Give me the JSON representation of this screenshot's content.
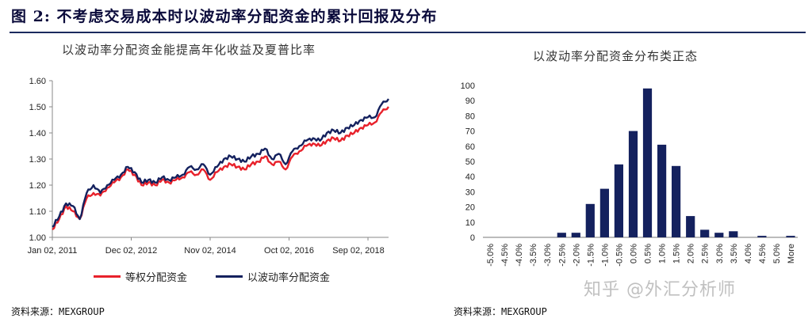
{
  "figure_title": "图 2: 不考虑交易成本时以波动率分配资金的累计回报及分布",
  "left_source": "资料来源：MEXGROUP",
  "right_source": "资料来源：MEXGROUP",
  "watermark": "知乎 @外汇分析师",
  "colors": {
    "equal": "#e8212b",
    "vol": "#14215e",
    "bar": "#14215e"
  },
  "chart_data": [
    {
      "type": "line",
      "title": "以波动率分配资金能提高年化收益及夏普比率",
      "xlabel": "",
      "ylabel": "",
      "ylim": [
        1.0,
        1.6
      ],
      "yticks": [
        "1.00",
        "1.10",
        "1.20",
        "1.30",
        "1.40",
        "1.50",
        "1.60"
      ],
      "xticks": [
        "Jan 02, 2011",
        "Dec 02, 2012",
        "Nov 02, 2014",
        "Oct 02, 2016",
        "Sep 02, 2018"
      ],
      "xrange": [
        "2011-01",
        "2019-03"
      ],
      "legend": "bottom",
      "series": [
        {
          "name": "等权分配资金",
          "color": "#e8212b",
          "points": [
            [
              "2011-01",
              1.03
            ],
            [
              "2011-03",
              1.07
            ],
            [
              "2011-05",
              1.12
            ],
            [
              "2011-07",
              1.1
            ],
            [
              "2011-09",
              1.07
            ],
            [
              "2011-11",
              1.15
            ],
            [
              "2012-01",
              1.17
            ],
            [
              "2012-03",
              1.16
            ],
            [
              "2012-05",
              1.19
            ],
            [
              "2012-07",
              1.21
            ],
            [
              "2012-09",
              1.23
            ],
            [
              "2012-11",
              1.26
            ],
            [
              "2013-01",
              1.24
            ],
            [
              "2013-03",
              1.2
            ],
            [
              "2013-05",
              1.21
            ],
            [
              "2013-07",
              1.2
            ],
            [
              "2013-09",
              1.22
            ],
            [
              "2013-11",
              1.21
            ],
            [
              "2014-01",
              1.22
            ],
            [
              "2014-03",
              1.23
            ],
            [
              "2014-05",
              1.25
            ],
            [
              "2014-07",
              1.24
            ],
            [
              "2014-09",
              1.26
            ],
            [
              "2014-11",
              1.22
            ],
            [
              "2015-01",
              1.25
            ],
            [
              "2015-03",
              1.27
            ],
            [
              "2015-05",
              1.28
            ],
            [
              "2015-07",
              1.27
            ],
            [
              "2015-09",
              1.26
            ],
            [
              "2015-11",
              1.28
            ],
            [
              "2016-01",
              1.29
            ],
            [
              "2016-03",
              1.31
            ],
            [
              "2016-05",
              1.28
            ],
            [
              "2016-07",
              1.29
            ],
            [
              "2016-09",
              1.26
            ],
            [
              "2016-11",
              1.31
            ],
            [
              "2017-01",
              1.33
            ],
            [
              "2017-03",
              1.35
            ],
            [
              "2017-05",
              1.36
            ],
            [
              "2017-07",
              1.35
            ],
            [
              "2017-09",
              1.37
            ],
            [
              "2017-11",
              1.38
            ],
            [
              "2018-01",
              1.37
            ],
            [
              "2018-03",
              1.39
            ],
            [
              "2018-05",
              1.4
            ],
            [
              "2018-07",
              1.42
            ],
            [
              "2018-09",
              1.43
            ],
            [
              "2018-11",
              1.44
            ],
            [
              "2019-01",
              1.48
            ],
            [
              "2019-03",
              1.5
            ]
          ]
        },
        {
          "name": "以波动率分配资金",
          "color": "#14215e",
          "points": [
            [
              "2011-01",
              1.04
            ],
            [
              "2011-03",
              1.08
            ],
            [
              "2011-05",
              1.13
            ],
            [
              "2011-07",
              1.12
            ],
            [
              "2011-09",
              1.07
            ],
            [
              "2011-11",
              1.17
            ],
            [
              "2012-01",
              1.2
            ],
            [
              "2012-03",
              1.17
            ],
            [
              "2012-05",
              1.2
            ],
            [
              "2012-07",
              1.22
            ],
            [
              "2012-09",
              1.24
            ],
            [
              "2012-11",
              1.27
            ],
            [
              "2013-01",
              1.25
            ],
            [
              "2013-03",
              1.21
            ],
            [
              "2013-05",
              1.22
            ],
            [
              "2013-07",
              1.21
            ],
            [
              "2013-09",
              1.23
            ],
            [
              "2013-11",
              1.22
            ],
            [
              "2014-01",
              1.23
            ],
            [
              "2014-03",
              1.24
            ],
            [
              "2014-05",
              1.27
            ],
            [
              "2014-07",
              1.26
            ],
            [
              "2014-09",
              1.28
            ],
            [
              "2014-11",
              1.24
            ],
            [
              "2015-01",
              1.27
            ],
            [
              "2015-03",
              1.3
            ],
            [
              "2015-05",
              1.31
            ],
            [
              "2015-07",
              1.3
            ],
            [
              "2015-09",
              1.29
            ],
            [
              "2015-11",
              1.31
            ],
            [
              "2016-01",
              1.32
            ],
            [
              "2016-03",
              1.34
            ],
            [
              "2016-05",
              1.3
            ],
            [
              "2016-07",
              1.32
            ],
            [
              "2016-09",
              1.28
            ],
            [
              "2016-11",
              1.33
            ],
            [
              "2017-01",
              1.35
            ],
            [
              "2017-03",
              1.37
            ],
            [
              "2017-05",
              1.38
            ],
            [
              "2017-07",
              1.37
            ],
            [
              "2017-09",
              1.4
            ],
            [
              "2017-11",
              1.41
            ],
            [
              "2018-01",
              1.4
            ],
            [
              "2018-03",
              1.42
            ],
            [
              "2018-05",
              1.43
            ],
            [
              "2018-07",
              1.45
            ],
            [
              "2018-09",
              1.46
            ],
            [
              "2018-11",
              1.46
            ],
            [
              "2019-01",
              1.51
            ],
            [
              "2019-03",
              1.53
            ]
          ]
        }
      ]
    },
    {
      "type": "bar",
      "title": "以波动率分配资金分布类正态",
      "xlabel": "",
      "ylabel": "",
      "ylim": [
        0,
        100
      ],
      "yticks": [
        "0",
        "10",
        "20",
        "30",
        "40",
        "50",
        "60",
        "70",
        "80",
        "90",
        "100"
      ],
      "categories": [
        "-5.0%",
        "-4.5%",
        "-4.0%",
        "-3.5%",
        "-3.0%",
        "-2.5%",
        "-2.0%",
        "-1.5%",
        "-1.0%",
        "-0.5%",
        "0.0%",
        "0.5%",
        "1.0%",
        "1.5%",
        "2.0%",
        "2.5%",
        "3.0%",
        "3.5%",
        "4.0%",
        "4.5%",
        "5.0%",
        "More"
      ],
      "values": [
        0,
        0,
        0,
        0,
        0,
        3,
        3,
        22,
        32,
        48,
        70,
        98,
        61,
        47,
        14,
        5,
        3,
        4,
        0,
        1,
        0,
        1
      ],
      "color": "#14215e"
    }
  ]
}
